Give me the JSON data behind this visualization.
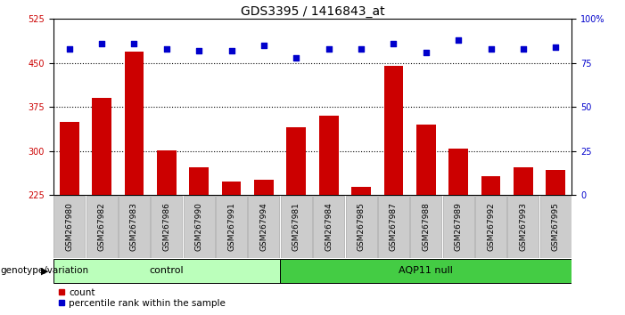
{
  "title": "GDS3395 / 1416843_at",
  "samples": [
    "GSM267980",
    "GSM267982",
    "GSM267983",
    "GSM267986",
    "GSM267990",
    "GSM267991",
    "GSM267994",
    "GSM267981",
    "GSM267984",
    "GSM267985",
    "GSM267987",
    "GSM267988",
    "GSM267989",
    "GSM267992",
    "GSM267993",
    "GSM267995"
  ],
  "counts": [
    350,
    390,
    470,
    302,
    272,
    248,
    252,
    340,
    360,
    240,
    445,
    345,
    305,
    258,
    272,
    268
  ],
  "percentile_ranks": [
    83,
    86,
    86,
    83,
    82,
    82,
    85,
    78,
    83,
    83,
    86,
    81,
    88,
    83,
    83,
    84
  ],
  "n_control": 7,
  "n_aqp11": 9,
  "ylim_left": [
    225,
    525
  ],
  "ylim_right": [
    0,
    100
  ],
  "yticks_left": [
    225,
    300,
    375,
    450,
    525
  ],
  "yticks_right": [
    0,
    25,
    50,
    75,
    100
  ],
  "bar_color": "#cc0000",
  "dot_color": "#0000cc",
  "control_color": "#bbffbb",
  "aqp11_color": "#44cc44",
  "tick_bg_color": "#cccccc",
  "left_axis_color": "#cc0000",
  "right_axis_color": "#0000cc",
  "legend_count_color": "#cc0000",
  "legend_pct_color": "#0000cc",
  "group_label_fontsize": 8,
  "title_fontsize": 10,
  "tick_fontsize": 7,
  "sample_fontsize": 6.5
}
